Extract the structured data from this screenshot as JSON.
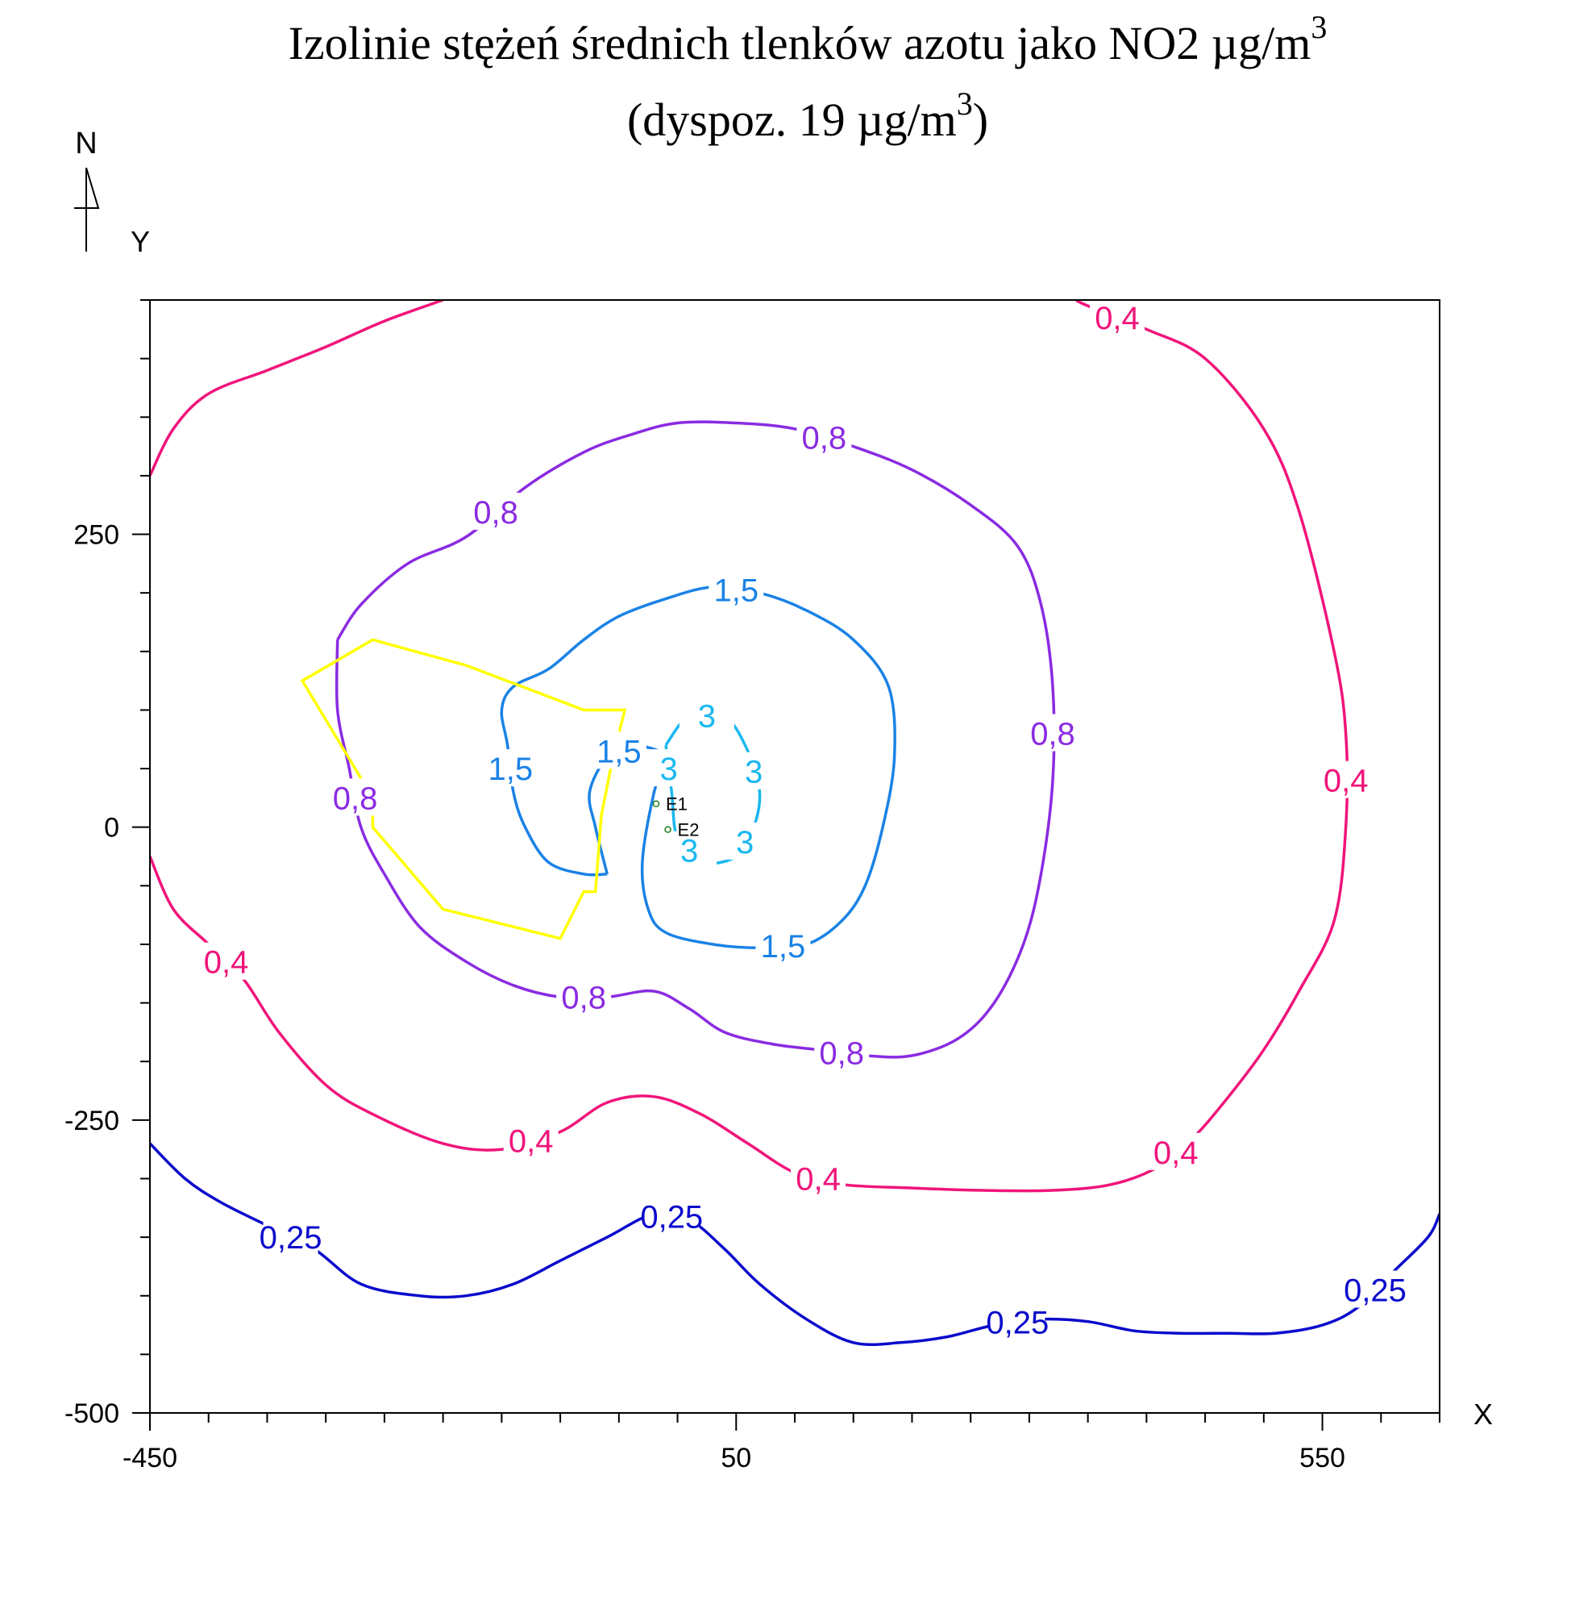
{
  "chart_data": {
    "type": "contour",
    "title": "Izolinie stężeń średnich tlenków azotu jako NO2 µg/m",
    "title_sup": "3",
    "subtitle_prefix": "(dyspoz. 19 µg/m",
    "subtitle_sup": "3",
    "subtitle_suffix": ")",
    "north_label": "N",
    "xlabel": "X",
    "ylabel": "Y",
    "xlim": [
      -450,
      650
    ],
    "ylim": [
      -500,
      450
    ],
    "x_ticks": [
      -450,
      50,
      550
    ],
    "x_tick_labels": [
      "-450",
      "50",
      "550"
    ],
    "y_ticks": [
      -500,
      -250,
      0,
      250
    ],
    "y_tick_labels": [
      "-500",
      "-250",
      "0",
      "250"
    ],
    "minor_tick_step": 50,
    "source_labels": [
      "E1",
      "E2"
    ],
    "colors": {
      "0,25": "#0a0acc",
      "0,4": "#f0147a",
      "0,8": "#8a2be2",
      "1,5": "#1a82e6",
      "3": "#1ab8f0",
      "boundary": "#ffff00",
      "axes": "#000000"
    },
    "contours": [
      {
        "level": "0,25",
        "color": "#0a0acc",
        "labels": [
          "0,25",
          "0,25",
          "0,25",
          "0,25"
        ],
        "points": [
          [
            -450,
            -270
          ],
          [
            -420,
            -300
          ],
          [
            -390,
            -320
          ],
          [
            -350,
            -340
          ],
          [
            -310,
            -360
          ],
          [
            -270,
            -390
          ],
          [
            -220,
            -400
          ],
          [
            -180,
            -400
          ],
          [
            -140,
            -390
          ],
          [
            -100,
            -370
          ],
          [
            -60,
            -350
          ],
          [
            -20,
            -330
          ],
          [
            10,
            -335
          ],
          [
            40,
            -360
          ],
          [
            70,
            -390
          ],
          [
            110,
            -420
          ],
          [
            150,
            -440
          ],
          [
            190,
            -440
          ],
          [
            230,
            -435
          ],
          [
            270,
            -425
          ],
          [
            310,
            -420
          ],
          [
            350,
            -422
          ],
          [
            390,
            -430
          ],
          [
            430,
            -432
          ],
          [
            470,
            -432
          ],
          [
            510,
            -432
          ],
          [
            550,
            -425
          ],
          [
            580,
            -410
          ],
          [
            610,
            -380
          ],
          [
            640,
            -350
          ],
          [
            650,
            -330
          ]
        ]
      },
      {
        "level": "0,4",
        "color": "#f0147a",
        "labels": [
          "0,4",
          "0,4",
          "0,4",
          "0,4",
          "0,4",
          "0,4"
        ],
        "points": [
          [
            -450,
            -25
          ],
          [
            -430,
            -70
          ],
          [
            -400,
            -100
          ],
          [
            -370,
            -130
          ],
          [
            -340,
            -175
          ],
          [
            -300,
            -220
          ],
          [
            -260,
            -245
          ],
          [
            -200,
            -270
          ],
          [
            -150,
            -275
          ],
          [
            -100,
            -260
          ],
          [
            -60,
            -235
          ],
          [
            -20,
            -230
          ],
          [
            20,
            -245
          ],
          [
            60,
            -270
          ],
          [
            100,
            -295
          ],
          [
            140,
            -305
          ],
          [
            200,
            -308
          ],
          [
            260,
            -310
          ],
          [
            320,
            -310
          ],
          [
            370,
            -305
          ],
          [
            410,
            -290
          ],
          [
            440,
            -265
          ],
          [
            470,
            -230
          ],
          [
            500,
            -190
          ],
          [
            530,
            -140
          ],
          [
            560,
            -80
          ],
          [
            570,
            0
          ],
          [
            570,
            80
          ],
          [
            560,
            150
          ],
          [
            530,
            270
          ],
          [
            500,
            340
          ],
          [
            450,
            400
          ],
          [
            400,
            425
          ],
          [
            350,
            445
          ],
          [
            340,
            450
          ]
        ]
      },
      {
        "level": "0,4",
        "color": "#f0147a",
        "labels": [],
        "points": [
          [
            -450,
            300
          ],
          [
            -430,
            340
          ],
          [
            -400,
            370
          ],
          [
            -350,
            390
          ],
          [
            -300,
            410
          ],
          [
            -250,
            432
          ],
          [
            -200,
            450
          ]
        ]
      },
      {
        "level": "0,8",
        "color": "#8a2be2",
        "labels": [
          "0,8",
          "0,8",
          "0,8",
          "0,8",
          "0,8",
          "0,8"
        ],
        "points": [
          [
            -290,
            160
          ],
          [
            -270,
            190
          ],
          [
            -230,
            225
          ],
          [
            -180,
            248
          ],
          [
            -130,
            290
          ],
          [
            -80,
            320
          ],
          [
            -40,
            335
          ],
          [
            0,
            345
          ],
          [
            50,
            345
          ],
          [
            100,
            340
          ],
          [
            150,
            325
          ],
          [
            200,
            305
          ],
          [
            250,
            275
          ],
          [
            290,
            240
          ],
          [
            310,
            190
          ],
          [
            320,
            120
          ],
          [
            320,
            40
          ],
          [
            310,
            -40
          ],
          [
            295,
            -100
          ],
          [
            270,
            -150
          ],
          [
            240,
            -180
          ],
          [
            200,
            -195
          ],
          [
            160,
            -195
          ],
          [
            120,
            -190
          ],
          [
            80,
            -185
          ],
          [
            40,
            -175
          ],
          [
            10,
            -155
          ],
          [
            -20,
            -140
          ],
          [
            -60,
            -145
          ],
          [
            -100,
            -145
          ],
          [
            -140,
            -135
          ],
          [
            -180,
            -115
          ],
          [
            -220,
            -85
          ],
          [
            -250,
            -40
          ],
          [
            -270,
            0
          ],
          [
            -280,
            50
          ],
          [
            -290,
            100
          ],
          [
            -290,
            160
          ]
        ]
      },
      {
        "level": "1,5",
        "color": "#1a82e6",
        "labels": [
          "1,5",
          "1,5",
          "1,5",
          "1,5"
        ],
        "points": [
          [
            -60,
            -40
          ],
          [
            -80,
            -40
          ],
          [
            -110,
            -30
          ],
          [
            -130,
            0
          ],
          [
            -140,
            30
          ],
          [
            -145,
            70
          ],
          [
            -150,
            100
          ],
          [
            -140,
            120
          ],
          [
            -110,
            135
          ],
          [
            -80,
            160
          ],
          [
            -50,
            180
          ],
          [
            -10,
            195
          ],
          [
            30,
            205
          ],
          [
            70,
            200
          ],
          [
            110,
            185
          ],
          [
            150,
            160
          ],
          [
            180,
            120
          ],
          [
            185,
            60
          ],
          [
            175,
            0
          ],
          [
            160,
            -50
          ],
          [
            140,
            -80
          ],
          [
            110,
            -100
          ],
          [
            70,
            -103
          ],
          [
            30,
            -100
          ],
          [
            -10,
            -90
          ],
          [
            -25,
            -70
          ],
          [
            -30,
            -30
          ],
          [
            -20,
            30
          ],
          [
            -10,
            60
          ],
          [
            -40,
            70
          ],
          [
            -60,
            60
          ],
          [
            -75,
            30
          ],
          [
            -70,
            0
          ],
          [
            -60,
            -40
          ]
        ]
      },
      {
        "level": "3",
        "color": "#1ab8f0",
        "labels": [
          "3",
          "3",
          "3",
          "3",
          "3"
        ],
        "points": [
          [
            -10,
            70
          ],
          [
            10,
            95
          ],
          [
            40,
            95
          ],
          [
            60,
            65
          ],
          [
            70,
            30
          ],
          [
            65,
            0
          ],
          [
            50,
            -25
          ],
          [
            20,
            -30
          ],
          [
            0,
            -10
          ],
          [
            -5,
            30
          ],
          [
            -10,
            70
          ]
        ]
      }
    ],
    "boundary": {
      "color": "#ffff00",
      "points": [
        [
          -320,
          125
        ],
        [
          -260,
          160
        ],
        [
          -180,
          138
        ],
        [
          -80,
          100
        ],
        [
          -45,
          100
        ],
        [
          -55,
          60
        ],
        [
          -65,
          10
        ],
        [
          -70,
          -55
        ],
        [
          -80,
          -55
        ],
        [
          -100,
          -95
        ],
        [
          -200,
          -70
        ],
        [
          -260,
          0
        ],
        [
          -260,
          25
        ],
        [
          -320,
          125
        ]
      ]
    }
  }
}
